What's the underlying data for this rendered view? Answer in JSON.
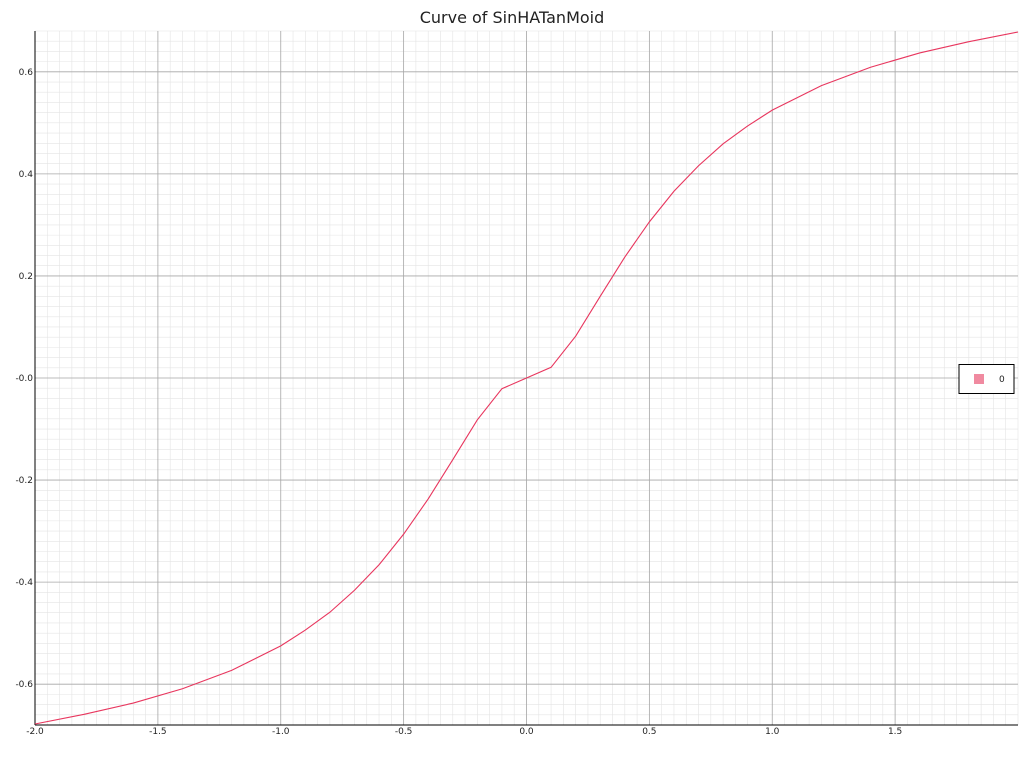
{
  "chart_data": {
    "type": "line",
    "title": "Curve of SinHATanMoid",
    "xlabel": "",
    "ylabel": "",
    "xlim": [
      -2.0,
      2.0
    ],
    "ylim": [
      -0.68,
      0.68
    ],
    "x_ticks": [
      -2.0,
      -1.5,
      -1.0,
      -0.5,
      0.0,
      0.5,
      1.0,
      1.5
    ],
    "x_tick_labels": [
      "-2.0",
      "-1.5",
      "-1.0",
      "-0.5",
      "0.0",
      "0.5",
      "1.0",
      "1.5"
    ],
    "y_ticks": [
      0.6,
      0.4,
      0.2,
      0.0,
      -0.2,
      -0.4,
      -0.6
    ],
    "y_tick_labels": [
      "0.6",
      "0.4",
      "0.2",
      "-0.0",
      "-0.2",
      "-0.4",
      "-0.6"
    ],
    "grid": true,
    "legend_position": "right",
    "series": [
      {
        "name": "0",
        "color": "#e8365e",
        "legend_color": "#f08aa0",
        "x": [
          -2.0,
          -1.8,
          -1.6,
          -1.4,
          -1.2,
          -1.0,
          -0.9,
          -0.8,
          -0.7,
          -0.6,
          -0.5,
          -0.4,
          -0.3,
          -0.2,
          -0.1,
          0.0,
          0.1,
          0.2,
          0.3,
          0.4,
          0.5,
          0.6,
          0.7,
          0.8,
          0.9,
          1.0,
          1.2,
          1.4,
          1.6,
          1.8,
          2.0
        ],
        "y": [
          -0.678,
          -0.659,
          -0.637,
          -0.609,
          -0.573,
          -0.525,
          -0.494,
          -0.459,
          -0.416,
          -0.366,
          -0.306,
          -0.237,
          -0.16,
          -0.082,
          -0.021,
          0.0,
          0.021,
          0.082,
          0.16,
          0.237,
          0.306,
          0.366,
          0.416,
          0.459,
          0.494,
          0.525,
          0.573,
          0.609,
          0.637,
          0.659,
          0.678
        ]
      }
    ]
  }
}
